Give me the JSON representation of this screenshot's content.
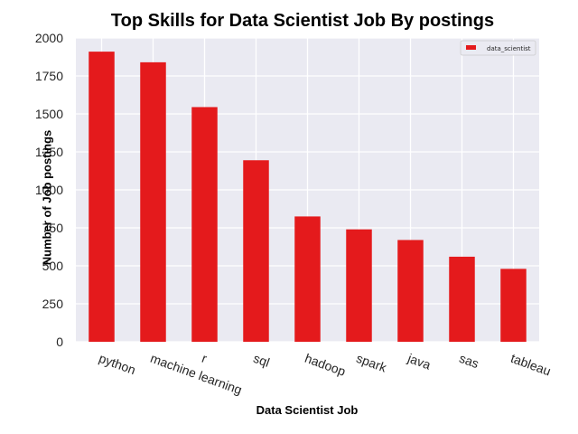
{
  "chart_data": {
    "type": "bar",
    "title": "Top Skills for Data Scientist Job By postings",
    "xlabel": "Data Scientist Job",
    "ylabel": "Number of Job postings",
    "categories": [
      "python",
      "machine learning",
      "r",
      "sql",
      "hadoop",
      "spark",
      "java",
      "sas",
      "tableau"
    ],
    "series": [
      {
        "name": "data_scientist",
        "color": "#e41a1c",
        "values": [
          1910,
          1840,
          1545,
          1195,
          825,
          740,
          670,
          560,
          480
        ]
      }
    ],
    "ylim": [
      0,
      2000
    ],
    "yticks": [
      0,
      250,
      500,
      750,
      1000,
      1250,
      1500,
      1750,
      2000
    ],
    "grid": true,
    "legend": "top-right",
    "background_color": "#eaeaf2"
  }
}
